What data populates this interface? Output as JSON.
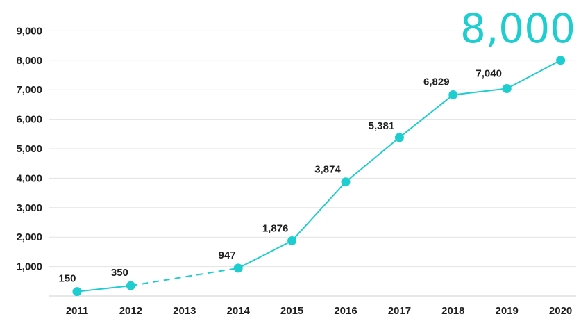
{
  "chart_data": {
    "type": "line",
    "categories": [
      "2011",
      "2012",
      "2013",
      "2014",
      "2015",
      "2016",
      "2017",
      "2018",
      "2019",
      "2020"
    ],
    "series": [
      {
        "values": [
          150,
          350,
          null,
          947,
          1876,
          3874,
          5381,
          6829,
          7040,
          8000
        ],
        "data_labels": [
          "150",
          "350",
          "",
          "947",
          "1,876",
          "3,874",
          "5,381",
          "6,829",
          "7,040",
          ""
        ],
        "dashed_segment": [
          "2012",
          "2014"
        ]
      }
    ],
    "highlight_label": "8,000",
    "y_ticks": [
      {
        "value": 1000,
        "label": "1,000"
      },
      {
        "value": 2000,
        "label": "2,000"
      },
      {
        "value": 3000,
        "label": "3,000"
      },
      {
        "value": 4000,
        "label": "4,000"
      },
      {
        "value": 5000,
        "label": "5,000"
      },
      {
        "value": 6000,
        "label": "6,000"
      },
      {
        "value": 7000,
        "label": "7,000"
      },
      {
        "value": 8000,
        "label": "8,000"
      },
      {
        "value": 9000,
        "label": "9,000"
      }
    ],
    "ylim": [
      0,
      9000
    ],
    "grid": true,
    "legend": "none",
    "line_color": "#1ecdcf"
  }
}
